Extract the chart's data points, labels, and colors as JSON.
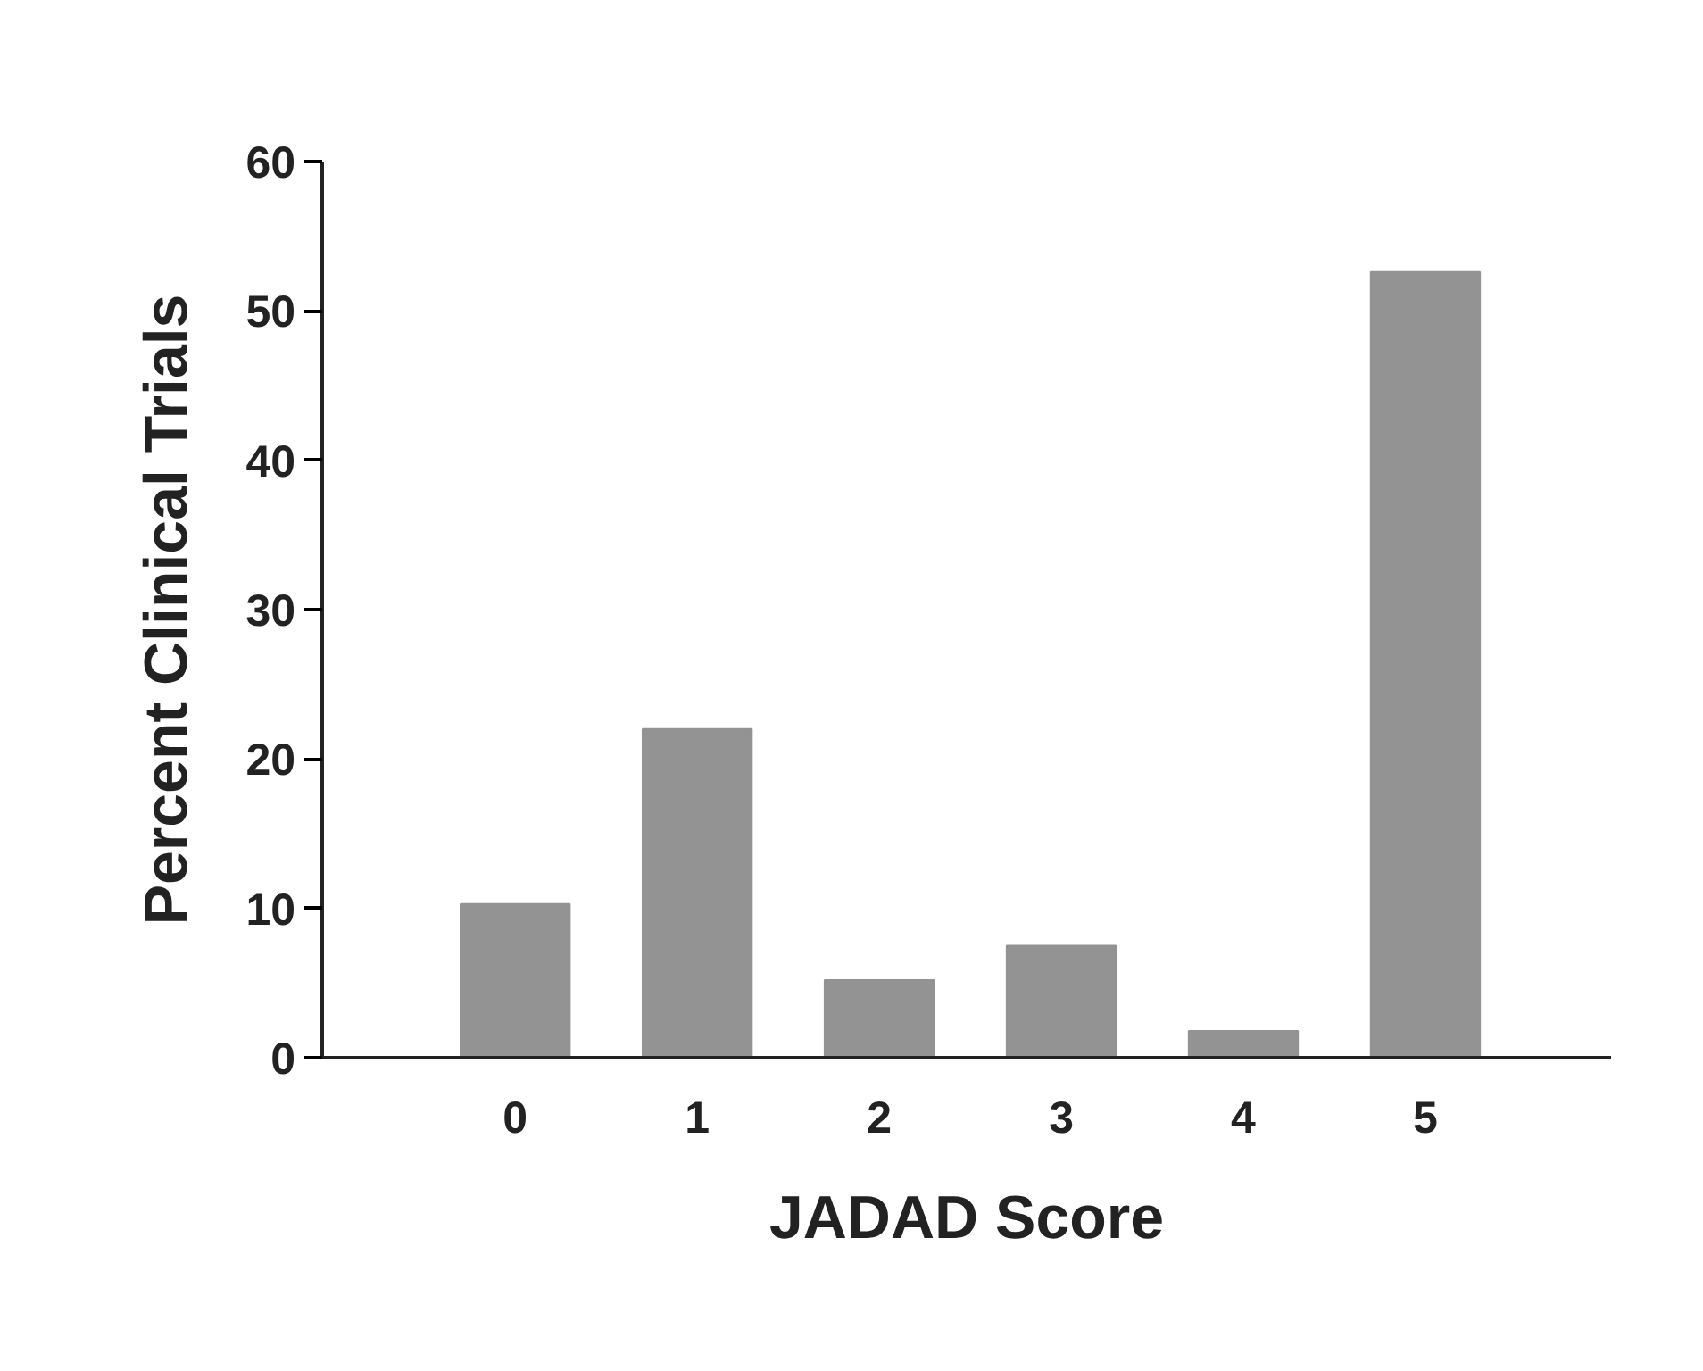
{
  "chart_data": {
    "type": "bar",
    "xlabel": "JADAD Score",
    "ylabel": "Percent Clinical Trials",
    "categories": [
      "0",
      "1",
      "2",
      "3",
      "4",
      "5"
    ],
    "values": [
      10.3,
      22.0,
      5.2,
      7.5,
      1.8,
      52.6
    ],
    "color": "#939393",
    "ylim": [
      0,
      60
    ],
    "yticks": [
      0,
      10,
      20,
      30,
      40,
      50,
      60
    ],
    "grid": false
  }
}
